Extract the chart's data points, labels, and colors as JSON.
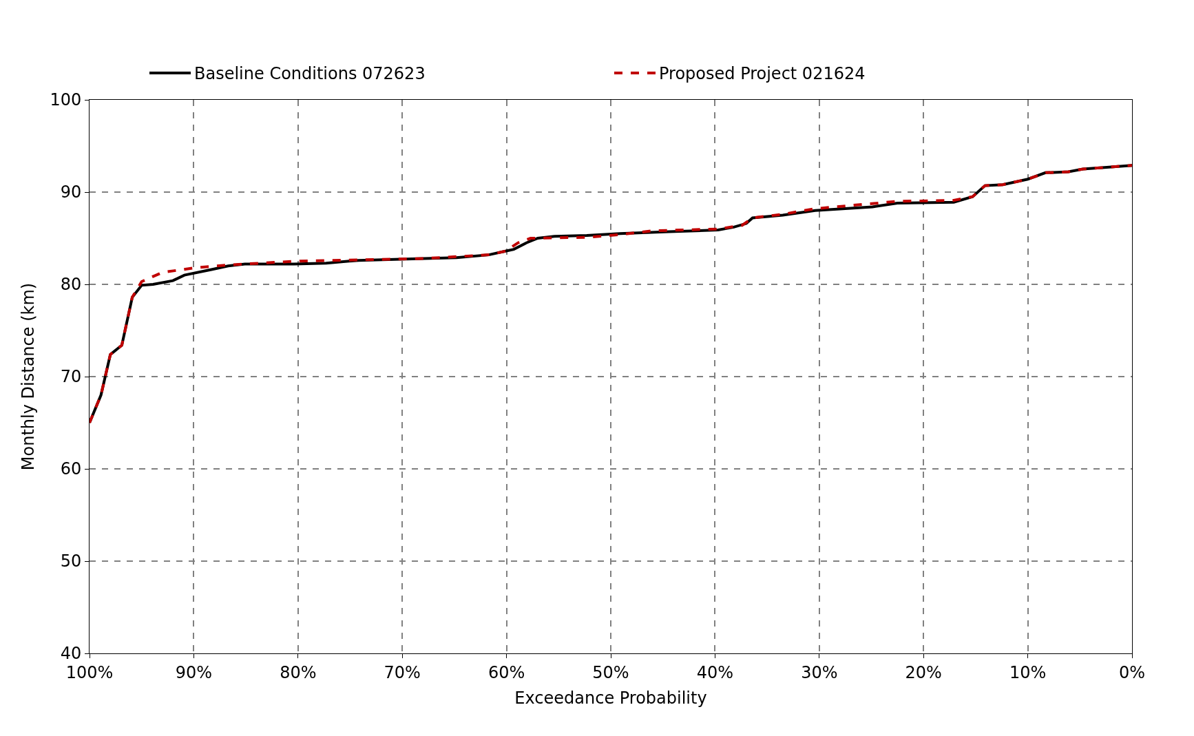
{
  "chart_data": {
    "type": "line",
    "xlabel": "Exceedance Probability",
    "ylabel": "Monthly Distance (km)",
    "xlim": [
      100,
      0
    ],
    "xticks": [
      {
        "value": 100,
        "label": "100%"
      },
      {
        "value": 90,
        "label": "90%"
      },
      {
        "value": 80,
        "label": "80%"
      },
      {
        "value": 70,
        "label": "70%"
      },
      {
        "value": 60,
        "label": "60%"
      },
      {
        "value": 50,
        "label": "50%"
      },
      {
        "value": 40,
        "label": "40%"
      },
      {
        "value": 30,
        "label": "30%"
      },
      {
        "value": 20,
        "label": "20%"
      },
      {
        "value": 10,
        "label": "10%"
      },
      {
        "value": 0,
        "label": "0%"
      }
    ],
    "ylim": [
      40,
      100
    ],
    "yticks": [
      40,
      50,
      60,
      70,
      80,
      90,
      100
    ],
    "grid": true,
    "legend": "top",
    "marker": "none",
    "series": [
      {
        "name": "Baseline Conditions 072623",
        "color": "#000000",
        "line_style": "solid",
        "x": [
          100,
          98.9,
          98.0,
          96.9,
          95.9,
          95.0,
          93.9,
          92.0,
          90.9,
          88.3,
          86.7,
          85.1,
          80.4,
          77.3,
          74.2,
          67.9,
          64.8,
          61.7,
          60.1,
          59.3,
          58.1,
          57.0,
          55.4,
          52.3,
          49.1,
          44.4,
          39.7,
          38.2,
          37.0,
          36.4,
          33.5,
          30.4,
          24.9,
          22.5,
          17.1,
          15.3,
          14.1,
          12.4,
          10.0,
          8.3,
          6.1,
          4.7,
          2.2,
          0
        ],
        "values": [
          65.0,
          68,
          72.4,
          73.4,
          78.6,
          79.9,
          80.0,
          80.4,
          81.0,
          81.6,
          82.0,
          82.2,
          82.2,
          82.3,
          82.6,
          82.8,
          82.9,
          83.2,
          83.6,
          83.8,
          84.5,
          85.0,
          85.2,
          85.3,
          85.5,
          85.7,
          85.9,
          86.2,
          86.6,
          87.2,
          87.5,
          88.0,
          88.4,
          88.8,
          88.9,
          89.5,
          90.7,
          90.8,
          91.4,
          92.1,
          92.2,
          92.5,
          92.7,
          92.9
        ]
      },
      {
        "name": "Proposed Project 021624",
        "color": "#c00000",
        "line_style": "dashed",
        "x": [
          100,
          98.9,
          98.0,
          96.9,
          95.9,
          95.0,
          93.0,
          89.8,
          86.7,
          80.4,
          67.9,
          61.7,
          60.1,
          58.9,
          57.7,
          52.3,
          49.1,
          46.0,
          39.7,
          37.4,
          36.4,
          33.5,
          30.4,
          22.5,
          17.1,
          15.3,
          14.1,
          12.4,
          10.0,
          8.3,
          6.1,
          4.7,
          2.2,
          0
        ],
        "values": [
          65.0,
          68,
          72.4,
          73.4,
          78.6,
          80.3,
          81.3,
          81.8,
          82.1,
          82.5,
          82.8,
          83.2,
          83.6,
          84.5,
          85.0,
          85.1,
          85.4,
          85.8,
          86.0,
          86.4,
          87.2,
          87.6,
          88.2,
          89.0,
          89.1,
          89.5,
          90.7,
          90.8,
          91.4,
          92.1,
          92.2,
          92.5,
          92.7,
          92.9
        ]
      }
    ]
  }
}
